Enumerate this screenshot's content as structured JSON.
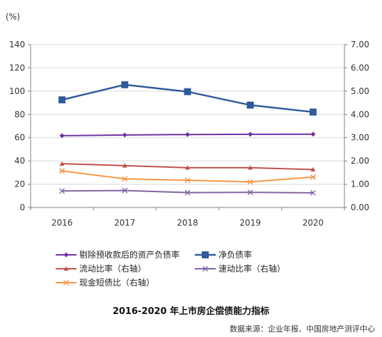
{
  "chart_data": {
    "type": "line",
    "title": "2016-2020 年上市房企偿债能力指标",
    "source": "数据来源：企业年报、中国房地产测评中心",
    "left_axis_unit": "(%)",
    "categories": [
      "2016",
      "2017",
      "2018",
      "2019",
      "2020"
    ],
    "ylim_left": [
      0,
      140
    ],
    "yticks_left": [
      "0",
      "20",
      "40",
      "60",
      "80",
      "100",
      "120",
      "140"
    ],
    "ylim_right": [
      0,
      7
    ],
    "yticks_right": [
      "0.00",
      "1.00",
      "2.00",
      "3.00",
      "4.00",
      "5.00",
      "6.00",
      "7.00"
    ],
    "grid": true,
    "legend_position": "bottom",
    "series": [
      {
        "name": "剔除预收款后的资产负债率",
        "axis": "left",
        "color": "#7030a0",
        "marker": "diamond",
        "values": [
          61.7,
          62.3,
          62.7,
          62.9,
          63.0
        ]
      },
      {
        "name": "净负债率",
        "axis": "left",
        "color": "#2e5b9a",
        "marker": "square",
        "values": [
          92.5,
          105.5,
          99.5,
          88.0,
          82.0
        ]
      },
      {
        "name": "流动比率（右轴）",
        "axis": "right",
        "color": "#c0504d",
        "marker": "triangle",
        "values": [
          1.88,
          1.8,
          1.71,
          1.71,
          1.63
        ]
      },
      {
        "name": "速动比率（右轴）",
        "axis": "right",
        "color": "#8064a2",
        "marker": "x",
        "values": [
          0.71,
          0.73,
          0.64,
          0.65,
          0.63
        ]
      },
      {
        "name": "现金短债比（右轴）",
        "axis": "right",
        "color": "#f79646",
        "marker": "star",
        "values": [
          1.57,
          1.23,
          1.17,
          1.1,
          1.31
        ]
      }
    ]
  }
}
